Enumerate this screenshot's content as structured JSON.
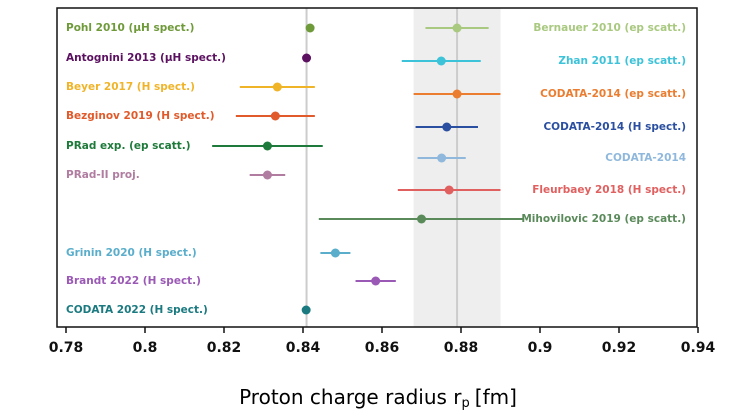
{
  "chart_data": {
    "type": "forest",
    "x_label": "Proton charge radius r",
    "x_label_subscript": "p",
    "x_label_unit": "[fm]",
    "xlim": [
      0.78,
      0.94
    ],
    "xticks": [
      0.78,
      0.8,
      0.82,
      0.84,
      0.86,
      0.88,
      0.9,
      0.92,
      0.94
    ],
    "band": [
      0.868,
      0.89
    ],
    "band_color": "#eeeeee",
    "reference_lines": [
      0.8409,
      0.879
    ],
    "reference_color": "#cccccc",
    "series": [
      {
        "name": "Pohl 2010 (μH spect.)",
        "color": "#6f9a3a",
        "value": 0.8418,
        "error": 0.0007,
        "side": "left"
      },
      {
        "name": "Antognini 2013 (μH spect.)",
        "color": "#5b1060",
        "value": 0.8409,
        "error": 0.0004,
        "side": "left"
      },
      {
        "name": "Beyer 2017 (H spect.)",
        "color": "#f0b429",
        "value": 0.8335,
        "error": 0.0095,
        "side": "left"
      },
      {
        "name": "Bezginov 2019 (H spect.)",
        "color": "#e05a2b",
        "value": 0.833,
        "error": 0.01,
        "side": "left"
      },
      {
        "name": "PRad exp. (ep scatt.)",
        "color": "#1e7a3a",
        "value": 0.831,
        "error": 0.014,
        "side": "left"
      },
      {
        "name": "PRad-II proj.",
        "color": "#b07ca0",
        "value": 0.831,
        "error": 0.0045,
        "side": "left"
      },
      {
        "name": "Grinin 2020 (H spect.)",
        "color": "#5aaecc",
        "value": 0.8482,
        "error": 0.0038,
        "side": "left"
      },
      {
        "name": "Brandt 2022 (H spect.)",
        "color": "#9b59b6",
        "value": 0.8584,
        "error": 0.0051,
        "side": "left"
      },
      {
        "name": "CODATA 2022 (H spect.)",
        "color": "#1a7a80",
        "value": 0.8408,
        "error": 0.0006,
        "side": "left"
      },
      {
        "name": "Bernauer 2010 (ep scatt.)",
        "color": "#a8c97f",
        "value": 0.879,
        "error": 0.008,
        "side": "right"
      },
      {
        "name": "Zhan 2011 (ep scatt.)",
        "color": "#3cc3d9",
        "value": 0.875,
        "error": 0.01,
        "side": "right"
      },
      {
        "name": "CODATA-2014 (ep scatt.)",
        "color": "#ea7d30",
        "value": 0.879,
        "error": 0.011,
        "side": "right"
      },
      {
        "name": "CODATA-2014 (H spect.)",
        "color": "#2a4fa0",
        "value": 0.8764,
        "error": 0.0079,
        "side": "right"
      },
      {
        "name": "CODATA-2014",
        "color": "#8fb8dc",
        "value": 0.8751,
        "error": 0.0061,
        "side": "right"
      },
      {
        "name": "Fleurbaey 2018 (H spect.)",
        "color": "#e06060",
        "value": 0.877,
        "error": 0.013,
        "side": "right"
      },
      {
        "name": "Mihovilovic 2019 (ep scatt.)",
        "color": "#5a8a5a",
        "value": 0.87,
        "error": 0.026,
        "side": "right"
      }
    ]
  }
}
